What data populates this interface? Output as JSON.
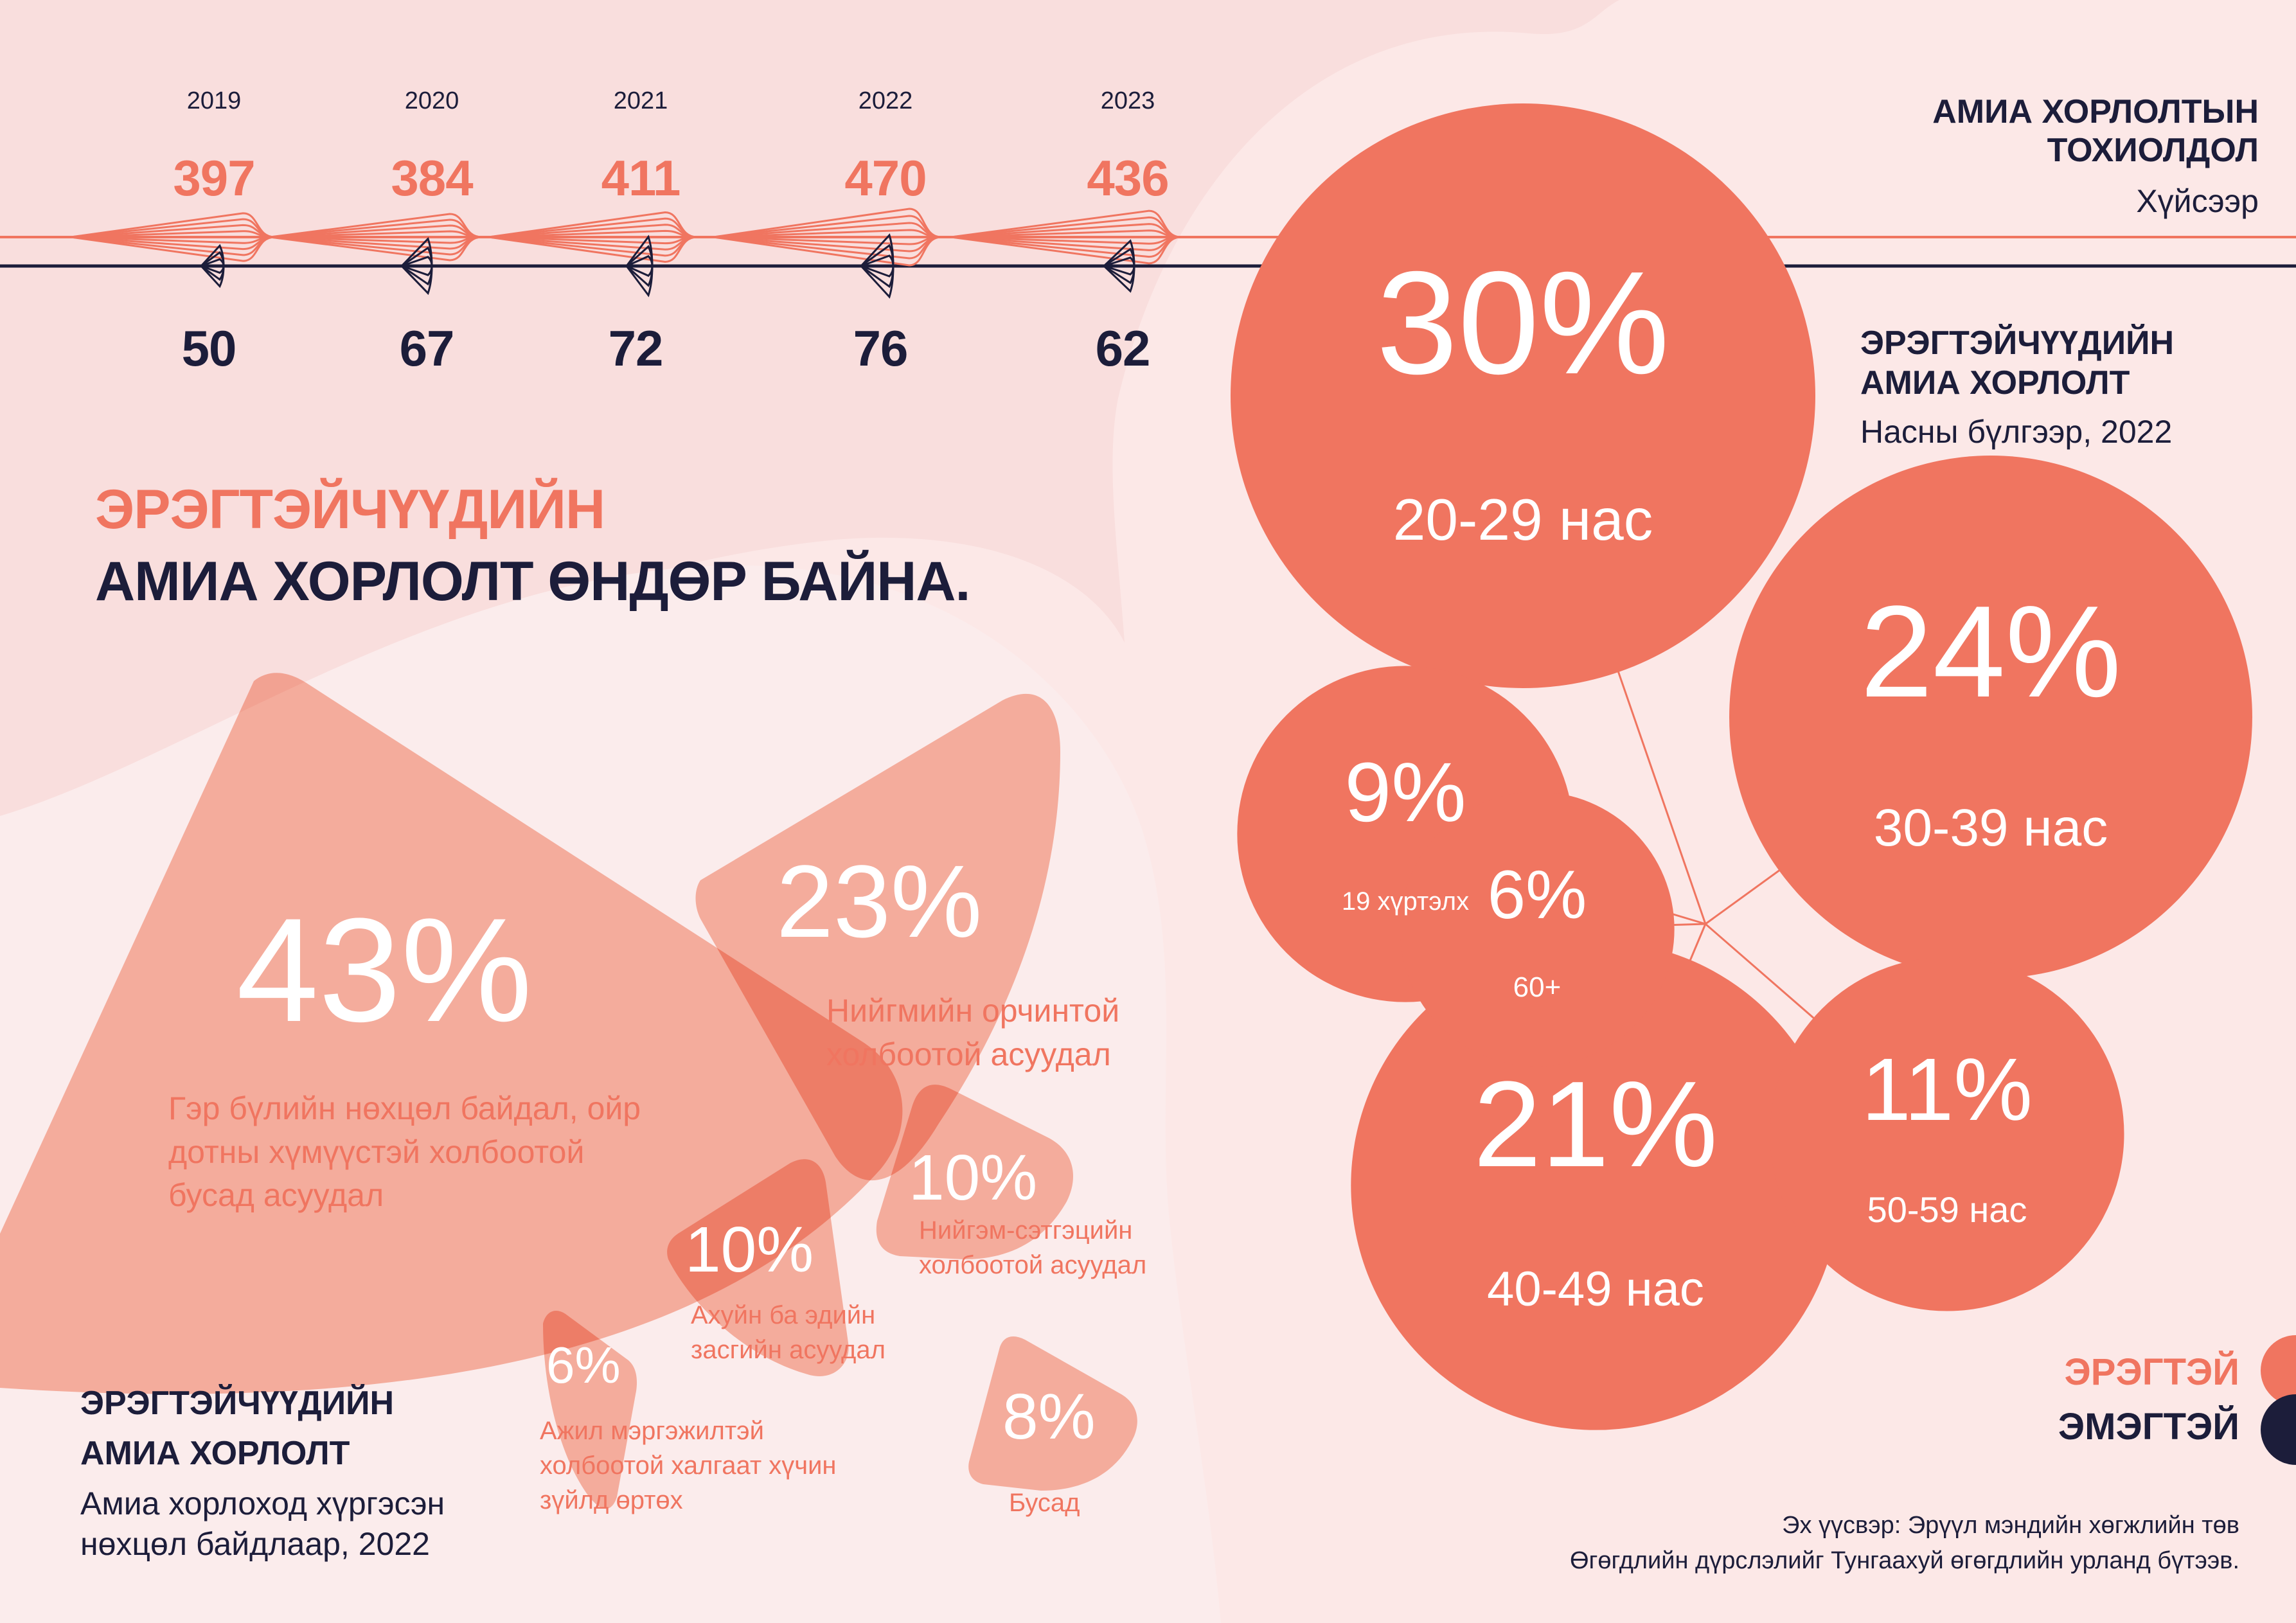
{
  "colors": {
    "male": "#f07560",
    "female": "#1c1d3a",
    "cause_shape": "#f7b19d",
    "background": "#fce8e7"
  },
  "timeline": {
    "title_line1": "АМИА ХОРЛОЛТЫН",
    "title_line2": "ТОХИОЛДОЛ",
    "subtitle": "Хүйсээр",
    "years": [
      {
        "year": "2019",
        "male": "397",
        "female": "50"
      },
      {
        "year": "2020",
        "male": "384",
        "female": "67"
      },
      {
        "year": "2021",
        "male": "411",
        "female": "72"
      },
      {
        "year": "2022",
        "male": "470",
        "female": "76"
      },
      {
        "year": "2023",
        "male": "436",
        "female": "62"
      }
    ]
  },
  "headline": {
    "line1": "ЭРЭГТЭЙЧҮҮДИЙН",
    "line2": "АМИА ХОРЛОЛТ ӨНДӨР БАЙНА."
  },
  "causes": {
    "title_line1": "ЭРЭГТЭЙЧҮҮДИЙН",
    "title_line2": "АМИА ХОРЛОЛТ",
    "subtitle_line1": "Амиа хорлоход хүргэсэн",
    "subtitle_line2": "нөхцөл байдлаар, 2022",
    "items": [
      {
        "pct": "43%",
        "label_lines": [
          "Гэр бүлийн нөхцөл байдал, ойр",
          "дотны хүмүүстэй холбоотой",
          "бусад асуудал"
        ]
      },
      {
        "pct": "23%",
        "label_lines": [
          "Нийгмийн орчинтой",
          "холбоотой асуудал"
        ]
      },
      {
        "pct": "10%",
        "label_lines": [
          "Нийгэм-сэтгэцийн",
          "холбоотой асуудал"
        ]
      },
      {
        "pct": "10%",
        "label_lines": [
          "Ахуйн ба эдийн",
          "засгийн асуудал"
        ]
      },
      {
        "pct": "6%",
        "label_lines": [
          "Ажил мэргэжилтэй",
          "холбоотой халгаат хүчин",
          "зүйлд өртөх"
        ]
      },
      {
        "pct": "8%",
        "label_lines": [
          "Бусад"
        ]
      }
    ]
  },
  "age_groups": {
    "title_line1": "ЭРЭГТЭЙЧҮҮДИЙН",
    "title_line2": "АМИА ХОРЛОЛТ",
    "subtitle": "Насны бүлгээр, 2022",
    "items": [
      {
        "pct": "30%",
        "label": "20-29 нас",
        "value": 30
      },
      {
        "pct": "24%",
        "label": "30-39 нас",
        "value": 24
      },
      {
        "pct": "21%",
        "label": "40-49 нас",
        "value": 21
      },
      {
        "pct": "11%",
        "label": "50-59 нас",
        "value": 11
      },
      {
        "pct": "9%",
        "label": "19 хүртэлх",
        "value": 9
      },
      {
        "pct": "6%",
        "label": "60+",
        "value": 6
      }
    ]
  },
  "legend": {
    "male": "ЭРЭГТЭЙ",
    "female": "ЭМЭГТЭЙ"
  },
  "source": {
    "line1": "Эх үүсвэр: Эрүүл мэндийн хөгжлийн төв",
    "line2": "Өгөгдлийн дүрслэлийг Тунгаахуй өгөгдлийн урланд бүтээв."
  }
}
